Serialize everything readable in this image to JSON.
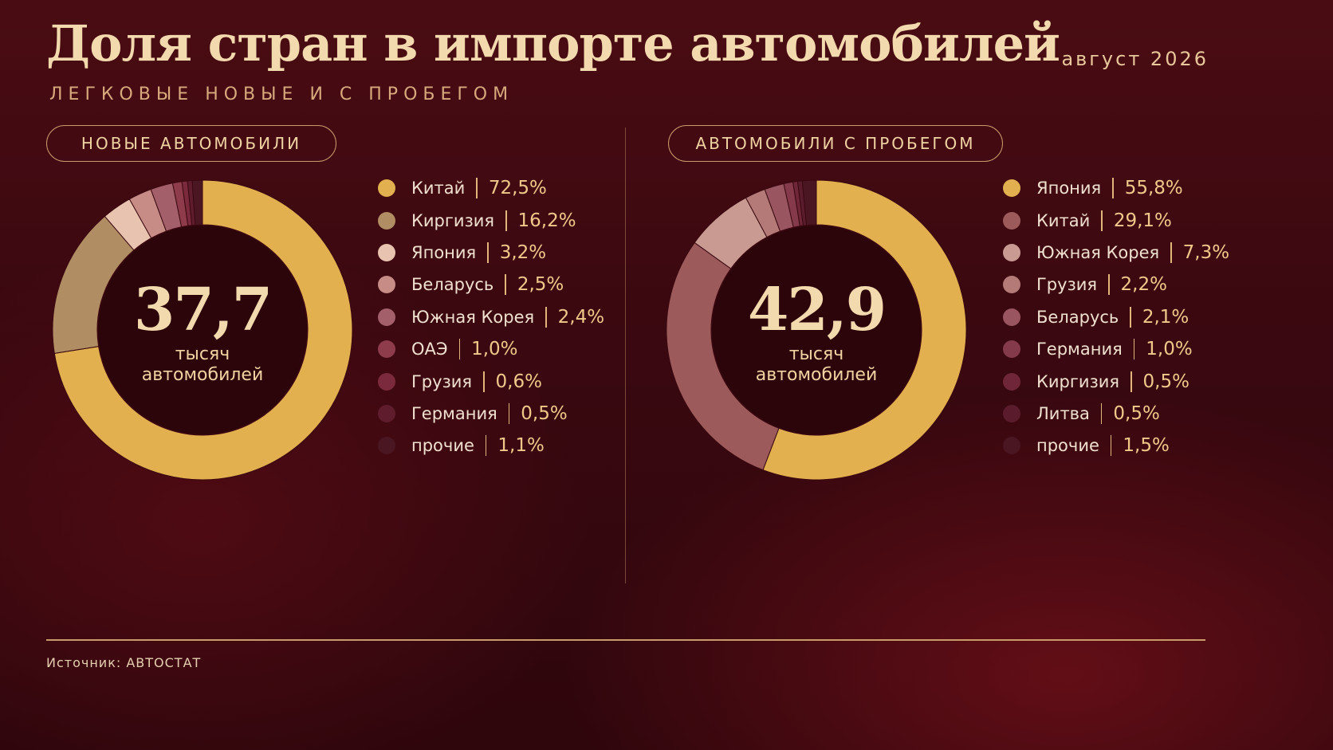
{
  "header": {
    "title": "Доля стран в импорте автомобилей",
    "date": "август 2026",
    "subtitle": "ЛЕГКОВЫЕ НОВЫЕ И С ПРОБЕГОМ"
  },
  "footer": {
    "source": "Источник: АВТОСТАТ"
  },
  "colors": {
    "background": "#3a0810",
    "accent": "#e0ae4e",
    "text": "#f0d3a3"
  },
  "chart_data": [
    {
      "type": "pie",
      "variant": "donut",
      "title": "НОВЫЕ АВТОМОБИЛИ",
      "center_value": "37,7",
      "center_unit_line1": "тысяч",
      "center_unit_line2": "автомобилей",
      "legend_placement": "right",
      "slices": [
        {
          "label": "Китай",
          "value": 72.5,
          "display": "72,5%",
          "color": "#e2b04e"
        },
        {
          "label": "Киргизия",
          "value": 16.2,
          "display": "16,2%",
          "color": "#b08d63"
        },
        {
          "label": "Япония",
          "value": 3.2,
          "display": "3,2%",
          "color": "#e8c4b0"
        },
        {
          "label": "Беларусь",
          "value": 2.5,
          "display": "2,5%",
          "color": "#c88c86"
        },
        {
          "label": "Южная Корея",
          "value": 2.4,
          "display": "2,4%",
          "color": "#a4606a"
        },
        {
          "label": "ОАЭ",
          "value": 1.0,
          "display": "1,0%",
          "color": "#8e3c4c"
        },
        {
          "label": "Грузия",
          "value": 0.6,
          "display": "0,6%",
          "color": "#7a2a3c"
        },
        {
          "label": "Германия",
          "value": 0.5,
          "display": "0,5%",
          "color": "#5e1c2c"
        },
        {
          "label": "прочие",
          "value": 1.1,
          "display": "1,1%",
          "color": "#4a1622"
        }
      ]
    },
    {
      "type": "pie",
      "variant": "donut",
      "title": "АВТОМОБИЛИ С ПРОБЕГОМ",
      "center_value": "42,9",
      "center_unit_line1": "тысяч",
      "center_unit_line2": "автомобилей",
      "legend_placement": "right",
      "slices": [
        {
          "label": "Япония",
          "value": 55.8,
          "display": "55,8%",
          "color": "#e2b04e"
        },
        {
          "label": "Китай",
          "value": 29.1,
          "display": "29,1%",
          "color": "#9c5a5a"
        },
        {
          "label": "Южная Корея",
          "value": 7.3,
          "display": "7,3%",
          "color": "#c89a92"
        },
        {
          "label": "Грузия",
          "value": 2.2,
          "display": "2,2%",
          "color": "#b47a78"
        },
        {
          "label": "Беларусь",
          "value": 2.1,
          "display": "2,1%",
          "color": "#9a5660"
        },
        {
          "label": "Германия",
          "value": 1.0,
          "display": "1,0%",
          "color": "#843a4a"
        },
        {
          "label": "Киргизия",
          "value": 0.5,
          "display": "0,5%",
          "color": "#6e2638"
        },
        {
          "label": "Литва",
          "value": 0.5,
          "display": "0,5%",
          "color": "#5a1c2c"
        },
        {
          "label": "прочие",
          "value": 1.5,
          "display": "1,5%",
          "color": "#4a1622"
        }
      ]
    }
  ]
}
